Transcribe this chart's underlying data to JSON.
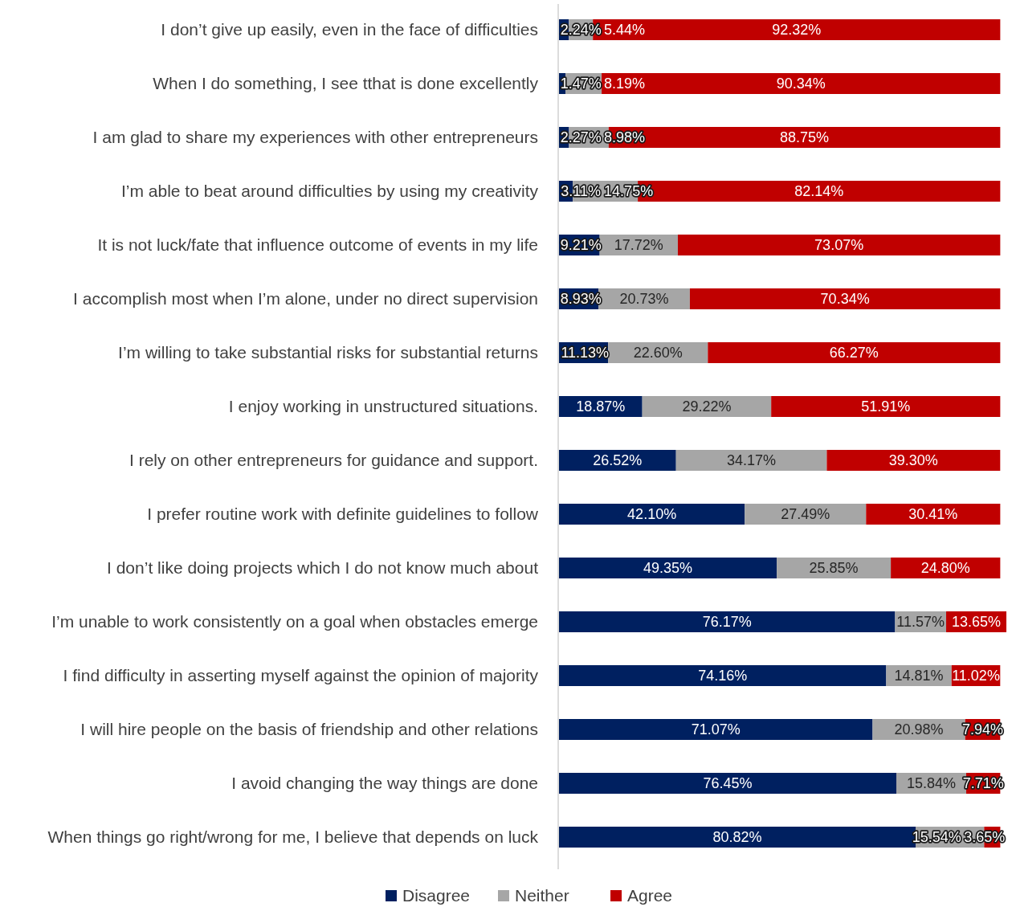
{
  "chart_data": {
    "type": "bar",
    "orientation": "horizontal",
    "stacked": true,
    "legend": "bottom",
    "categories": [
      "I don’t give up easily, even in the face of difficulties",
      "When I do something, I see tthat is done excellently",
      "I am glad to share my experiences with other entrepreneurs",
      "I’m able to beat around difficulties by using my creativity",
      "It is not luck/fate that influence outcome of events in my life",
      "I accomplish most when I’m alone, under no direct supervision",
      "I’m willing to take substantial risks for substantial returns",
      "I enjoy working in unstructured situations.",
      "I rely on other entrepreneurs for guidance and support.",
      "I prefer routine work with definite guidelines to follow",
      "I don’t like doing projects which I do not know much about",
      "I’m unable to work consistently on a goal when obstacles emerge",
      "I find difficulty in asserting myself against the opinion of majority",
      "I will hire people on the basis of friendship and other relations",
      "I avoid changing the way things are done",
      "When things go right/wrong for me, I believe that depends on luck"
    ],
    "series": [
      {
        "name": "Disagree",
        "color": "#002060",
        "values": [
          2.24,
          1.47,
          2.27,
          3.11,
          9.21,
          8.93,
          11.13,
          18.87,
          26.52,
          42.1,
          49.35,
          76.17,
          74.16,
          71.07,
          76.45,
          80.82
        ],
        "value_labels": [
          "2.24%",
          "1.47%",
          "2.27%",
          "3.11%",
          "9.21%",
          "8.93%",
          "11.13%",
          "18.87%",
          "26.52%",
          "42.10%",
          "49.35%",
          "76.17%",
          "74.16%",
          "71.07%",
          "76.45%",
          "80.82%"
        ]
      },
      {
        "name": "Neither",
        "color": "#a6a6a6",
        "values": [
          5.44,
          8.19,
          8.98,
          14.75,
          17.72,
          20.73,
          22.6,
          29.22,
          34.17,
          27.49,
          25.85,
          11.57,
          14.81,
          20.98,
          15.84,
          15.54
        ],
        "value_labels": [
          "5.44%",
          "8.19%",
          "8.98%",
          "14.75%",
          "17.72%",
          "20.73%",
          "22.60%",
          "29.22%",
          "34.17%",
          "27.49%",
          "25.85%",
          "11.57%",
          "14.81%",
          "20.98%",
          "15.84%",
          "15.54%"
        ]
      },
      {
        "name": "Agree",
        "color": "#c00000",
        "values": [
          92.32,
          90.34,
          88.75,
          82.14,
          73.07,
          70.34,
          66.27,
          51.91,
          39.3,
          30.41,
          24.8,
          13.65,
          11.02,
          7.94,
          7.71,
          3.65
        ],
        "value_labels": [
          "92.32%",
          "90.34%",
          "88.75%",
          "82.14%",
          "73.07%",
          "70.34%",
          "66.27%",
          "51.91%",
          "39.30%",
          "30.41%",
          "24.80%",
          "13.65%",
          "11.02%",
          "7.94%",
          "7.71%",
          "3.65%"
        ]
      }
    ]
  }
}
